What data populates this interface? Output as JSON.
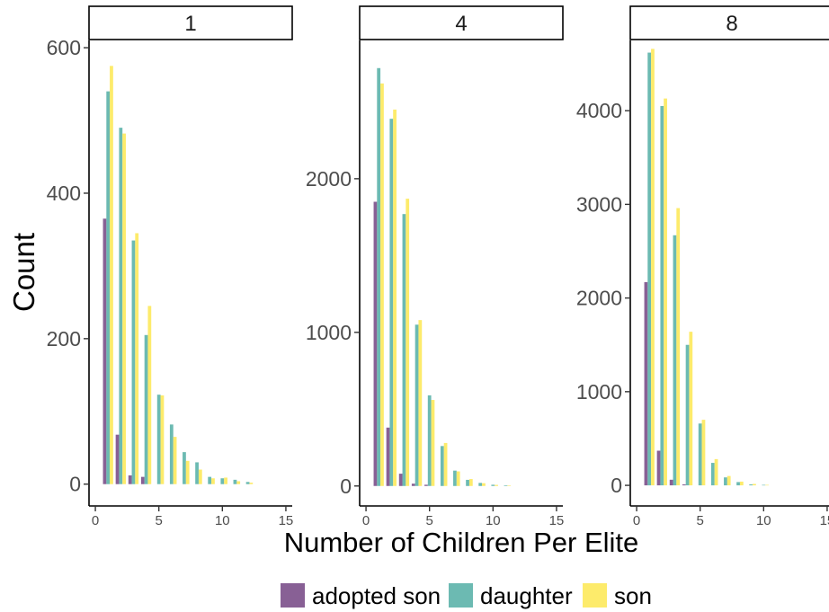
{
  "chart_data": {
    "type": "bar",
    "xlabel": "Number of Children Per Elite",
    "ylabel": "Count",
    "legend": {
      "position": "bottom",
      "entries": [
        "adopted son",
        "daughter",
        "son"
      ]
    },
    "series_colors": {
      "adopted son": "#7b4f8a",
      "daughter": "#5cb3aa",
      "son": "#fde95b"
    },
    "x_ticks": [
      "0",
      "5",
      "10",
      "15"
    ],
    "xlim": [
      -0.5,
      15.5
    ],
    "panels": [
      {
        "strip": "1",
        "ylim": [
          -30,
          610
        ],
        "y_ticks": [
          0,
          200,
          400,
          600
        ],
        "series": [
          {
            "name": "adopted son",
            "values": {
              "1": 365,
              "2": 68,
              "3": 12,
              "4": 10
            }
          },
          {
            "name": "daughter",
            "values": {
              "1": 540,
              "2": 490,
              "3": 335,
              "4": 205,
              "5": 123,
              "6": 82,
              "7": 44,
              "8": 30,
              "9": 10,
              "10": 8,
              "11": 6,
              "12": 3
            }
          },
          {
            "name": "son",
            "values": {
              "1": 575,
              "2": 482,
              "3": 345,
              "4": 245,
              "5": 122,
              "6": 65,
              "7": 32,
              "8": 20,
              "9": 8,
              "10": 9,
              "11": 4,
              "12": 2
            }
          }
        ]
      },
      {
        "strip": "4",
        "ylim": [
          -130,
          2900
        ],
        "y_ticks": [
          0,
          1000,
          2000
        ],
        "series": [
          {
            "name": "adopted son",
            "values": {
              "1": 1850,
              "2": 380,
              "3": 80,
              "4": 15,
              "5": 8
            }
          },
          {
            "name": "daughter",
            "values": {
              "1": 2720,
              "2": 2390,
              "3": 1770,
              "4": 1050,
              "5": 590,
              "6": 260,
              "7": 100,
              "8": 40,
              "9": 20,
              "10": 8,
              "11": 4
            }
          },
          {
            "name": "son",
            "values": {
              "1": 2620,
              "2": 2450,
              "3": 1870,
              "4": 1080,
              "5": 560,
              "6": 280,
              "7": 95,
              "8": 45,
              "9": 18,
              "10": 7,
              "11": 3
            }
          }
        ]
      },
      {
        "strip": "8",
        "ylim": [
          -220,
          4750
        ],
        "y_ticks": [
          0,
          1000,
          2000,
          3000,
          4000
        ],
        "series": [
          {
            "name": "adopted son",
            "values": {
              "1": 2170,
              "2": 370,
              "3": 60,
              "4": 10
            }
          },
          {
            "name": "daughter",
            "values": {
              "1": 4620,
              "2": 4050,
              "3": 2670,
              "4": 1500,
              "5": 660,
              "6": 240,
              "7": 85,
              "8": 35,
              "9": 10,
              "10": 5
            }
          },
          {
            "name": "son",
            "values": {
              "1": 4660,
              "2": 4130,
              "3": 2960,
              "4": 1640,
              "5": 700,
              "6": 280,
              "7": 100,
              "8": 40,
              "9": 15,
              "10": 5
            }
          }
        ]
      }
    ]
  }
}
